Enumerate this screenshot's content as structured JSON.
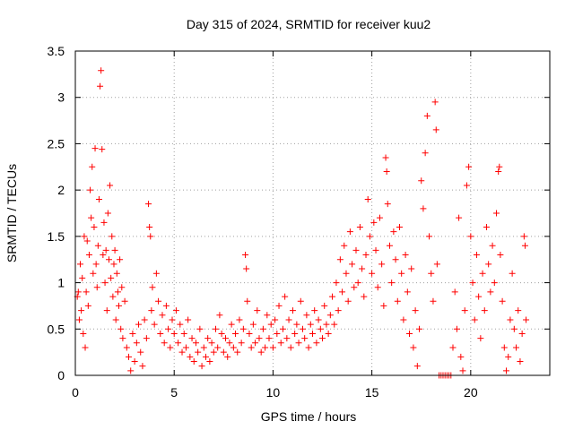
{
  "chart_data": {
    "type": "scatter",
    "title": "Day 315 of 2024, SRMTID for receiver kuu2",
    "xlabel": "GPS time / hours",
    "ylabel": "SRMTID / TECUs",
    "xlim": [
      0,
      24
    ],
    "ylim": [
      0,
      3.5
    ],
    "x_ticks": [
      0,
      5,
      10,
      15,
      20
    ],
    "x_tick_labels": [
      "0",
      "5",
      "10",
      "15",
      "20"
    ],
    "y_ticks": [
      0,
      0.5,
      1,
      1.5,
      2,
      2.5,
      3,
      3.5
    ],
    "y_tick_labels": [
      "0",
      "0.5",
      "1",
      "1.5",
      "2",
      "2.5",
      "3",
      "3.5"
    ],
    "grid": true,
    "marker": "+",
    "marker_color": "#ff0000",
    "series": [
      {
        "name": "SRMTID",
        "points": [
          [
            0.1,
            0.85
          ],
          [
            0.15,
            0.9
          ],
          [
            0.2,
            0.6
          ],
          [
            0.25,
            1.2
          ],
          [
            0.3,
            0.7
          ],
          [
            0.35,
            1.05
          ],
          [
            0.4,
            0.45
          ],
          [
            0.45,
            1.5
          ],
          [
            0.5,
            0.3
          ],
          [
            0.55,
            0.9
          ],
          [
            0.6,
            1.45
          ],
          [
            0.65,
            0.75
          ],
          [
            0.7,
            1.3
          ],
          [
            0.75,
            2.0
          ],
          [
            0.8,
            1.7
          ],
          [
            0.85,
            2.25
          ],
          [
            0.9,
            1.1
          ],
          [
            0.95,
            1.6
          ],
          [
            1.0,
            2.45
          ],
          [
            1.05,
            1.2
          ],
          [
            1.1,
            0.95
          ],
          [
            1.15,
            1.4
          ],
          [
            1.2,
            1.9
          ],
          [
            1.25,
            3.12
          ],
          [
            1.3,
            3.29
          ],
          [
            1.35,
            2.44
          ],
          [
            1.4,
            1.3
          ],
          [
            1.45,
            1.65
          ],
          [
            1.5,
            1.0
          ],
          [
            1.55,
            1.35
          ],
          [
            1.6,
            0.7
          ],
          [
            1.65,
            1.75
          ],
          [
            1.7,
            1.25
          ],
          [
            1.75,
            2.05
          ],
          [
            1.8,
            1.05
          ],
          [
            1.85,
            1.5
          ],
          [
            1.9,
            0.85
          ],
          [
            1.95,
            1.2
          ],
          [
            2.0,
            1.35
          ],
          [
            2.05,
            0.6
          ],
          [
            2.1,
            1.1
          ],
          [
            2.15,
            0.9
          ],
          [
            2.2,
            0.75
          ],
          [
            2.25,
            1.25
          ],
          [
            2.3,
            0.5
          ],
          [
            2.35,
            0.95
          ],
          [
            2.4,
            0.4
          ],
          [
            2.5,
            0.8
          ],
          [
            2.6,
            0.3
          ],
          [
            2.7,
            0.2
          ],
          [
            2.8,
            0.05
          ],
          [
            2.9,
            0.45
          ],
          [
            3.0,
            0.15
          ],
          [
            3.1,
            0.35
          ],
          [
            3.2,
            0.55
          ],
          [
            3.3,
            0.25
          ],
          [
            3.4,
            0.1
          ],
          [
            3.5,
            0.6
          ],
          [
            3.6,
            0.4
          ],
          [
            3.7,
            1.85
          ],
          [
            3.75,
            1.6
          ],
          [
            3.8,
            1.5
          ],
          [
            3.85,
            0.7
          ],
          [
            3.9,
            0.95
          ],
          [
            4.0,
            0.55
          ],
          [
            4.1,
            1.1
          ],
          [
            4.2,
            0.8
          ],
          [
            4.3,
            0.45
          ],
          [
            4.4,
            0.65
          ],
          [
            4.5,
            0.35
          ],
          [
            4.6,
            0.75
          ],
          [
            4.7,
            0.5
          ],
          [
            4.8,
            0.3
          ],
          [
            4.9,
            0.6
          ],
          [
            5.0,
            0.45
          ],
          [
            5.1,
            0.7
          ],
          [
            5.2,
            0.35
          ],
          [
            5.3,
            0.55
          ],
          [
            5.4,
            0.25
          ],
          [
            5.5,
            0.45
          ],
          [
            5.6,
            0.3
          ],
          [
            5.7,
            0.6
          ],
          [
            5.8,
            0.2
          ],
          [
            5.9,
            0.4
          ],
          [
            6.0,
            0.15
          ],
          [
            6.1,
            0.35
          ],
          [
            6.2,
            0.25
          ],
          [
            6.3,
            0.5
          ],
          [
            6.4,
            0.1
          ],
          [
            6.5,
            0.3
          ],
          [
            6.6,
            0.2
          ],
          [
            6.7,
            0.4
          ],
          [
            6.8,
            0.15
          ],
          [
            6.9,
            0.35
          ],
          [
            7.0,
            0.25
          ],
          [
            7.1,
            0.5
          ],
          [
            7.2,
            0.3
          ],
          [
            7.3,
            0.65
          ],
          [
            7.4,
            0.45
          ],
          [
            7.5,
            0.25
          ],
          [
            7.6,
            0.4
          ],
          [
            7.7,
            0.2
          ],
          [
            7.8,
            0.35
          ],
          [
            7.9,
            0.55
          ],
          [
            8.0,
            0.3
          ],
          [
            8.1,
            0.45
          ],
          [
            8.2,
            0.25
          ],
          [
            8.3,
            0.6
          ],
          [
            8.4,
            0.35
          ],
          [
            8.5,
            0.5
          ],
          [
            8.6,
            1.3
          ],
          [
            8.65,
            1.15
          ],
          [
            8.7,
            0.8
          ],
          [
            8.8,
            0.45
          ],
          [
            8.9,
            0.3
          ],
          [
            9.0,
            0.55
          ],
          [
            9.1,
            0.35
          ],
          [
            9.2,
            0.7
          ],
          [
            9.3,
            0.4
          ],
          [
            9.4,
            0.25
          ],
          [
            9.5,
            0.5
          ],
          [
            9.6,
            0.3
          ],
          [
            9.7,
            0.65
          ],
          [
            9.8,
            0.4
          ],
          [
            9.9,
            0.55
          ],
          [
            10.0,
            0.3
          ],
          [
            10.1,
            0.6
          ],
          [
            10.2,
            0.45
          ],
          [
            10.3,
            0.75
          ],
          [
            10.4,
            0.35
          ],
          [
            10.5,
            0.5
          ],
          [
            10.6,
            0.85
          ],
          [
            10.7,
            0.4
          ],
          [
            10.8,
            0.6
          ],
          [
            10.9,
            0.3
          ],
          [
            11.0,
            0.7
          ],
          [
            11.1,
            0.45
          ],
          [
            11.2,
            0.55
          ],
          [
            11.3,
            0.35
          ],
          [
            11.4,
            0.8
          ],
          [
            11.5,
            0.5
          ],
          [
            11.6,
            0.4
          ],
          [
            11.7,
            0.65
          ],
          [
            11.8,
            0.3
          ],
          [
            11.9,
            0.55
          ],
          [
            12.0,
            0.45
          ],
          [
            12.1,
            0.7
          ],
          [
            12.2,
            0.35
          ],
          [
            12.3,
            0.6
          ],
          [
            12.4,
            0.5
          ],
          [
            12.5,
            0.4
          ],
          [
            12.6,
            0.75
          ],
          [
            12.7,
            0.55
          ],
          [
            12.8,
            0.45
          ],
          [
            12.9,
            0.65
          ],
          [
            13.0,
            0.85
          ],
          [
            13.1,
            0.55
          ],
          [
            13.2,
            1.0
          ],
          [
            13.3,
            0.7
          ],
          [
            13.4,
            1.25
          ],
          [
            13.5,
            0.9
          ],
          [
            13.6,
            1.4
          ],
          [
            13.7,
            1.1
          ],
          [
            13.8,
            0.8
          ],
          [
            13.9,
            1.55
          ],
          [
            14.0,
            1.2
          ],
          [
            14.1,
            0.95
          ],
          [
            14.2,
            1.35
          ],
          [
            14.3,
            1.0
          ],
          [
            14.4,
            1.6
          ],
          [
            14.5,
            1.15
          ],
          [
            14.6,
            0.85
          ],
          [
            14.7,
            1.3
          ],
          [
            14.8,
            1.9
          ],
          [
            14.9,
            1.5
          ],
          [
            15.0,
            1.1
          ],
          [
            15.1,
            1.65
          ],
          [
            15.2,
            1.35
          ],
          [
            15.3,
            0.95
          ],
          [
            15.4,
            1.7
          ],
          [
            15.5,
            1.2
          ],
          [
            15.6,
            0.75
          ],
          [
            15.7,
            2.35
          ],
          [
            15.75,
            2.2
          ],
          [
            15.8,
            1.85
          ],
          [
            15.9,
            1.4
          ],
          [
            16.0,
            1.0
          ],
          [
            16.1,
            1.55
          ],
          [
            16.2,
            1.25
          ],
          [
            16.3,
            0.8
          ],
          [
            16.4,
            1.6
          ],
          [
            16.5,
            1.1
          ],
          [
            16.6,
            0.6
          ],
          [
            16.7,
            1.3
          ],
          [
            16.8,
            0.9
          ],
          [
            16.9,
            0.45
          ],
          [
            17.0,
            1.15
          ],
          [
            17.1,
            0.3
          ],
          [
            17.2,
            0.7
          ],
          [
            17.3,
            0.1
          ],
          [
            17.4,
            0.5
          ],
          [
            17.5,
            2.1
          ],
          [
            17.6,
            1.8
          ],
          [
            17.7,
            2.4
          ],
          [
            17.8,
            2.8
          ],
          [
            17.9,
            1.5
          ],
          [
            18.0,
            1.1
          ],
          [
            18.1,
            0.8
          ],
          [
            18.2,
            2.95
          ],
          [
            18.25,
            2.65
          ],
          [
            18.3,
            1.2
          ],
          [
            18.4,
            0.0
          ],
          [
            18.5,
            0.0
          ],
          [
            18.6,
            0.0
          ],
          [
            18.7,
            0.0
          ],
          [
            18.8,
            0.0
          ],
          [
            18.9,
            0.0
          ],
          [
            19.0,
            0.0
          ],
          [
            19.1,
            0.3
          ],
          [
            19.2,
            0.9
          ],
          [
            19.3,
            0.5
          ],
          [
            19.4,
            1.7
          ],
          [
            19.5,
            0.2
          ],
          [
            19.6,
            0.05
          ],
          [
            19.7,
            0.7
          ],
          [
            19.8,
            2.05
          ],
          [
            19.9,
            2.25
          ],
          [
            20.0,
            1.5
          ],
          [
            20.1,
            1.0
          ],
          [
            20.2,
            0.6
          ],
          [
            20.3,
            1.3
          ],
          [
            20.4,
            0.85
          ],
          [
            20.5,
            0.4
          ],
          [
            20.6,
            1.1
          ],
          [
            20.7,
            0.7
          ],
          [
            20.8,
            1.6
          ],
          [
            20.9,
            1.2
          ],
          [
            21.0,
            0.9
          ],
          [
            21.1,
            1.4
          ],
          [
            21.2,
            1.0
          ],
          [
            21.3,
            1.75
          ],
          [
            21.4,
            2.2
          ],
          [
            21.45,
            2.25
          ],
          [
            21.5,
            1.3
          ],
          [
            21.6,
            0.8
          ],
          [
            21.7,
            0.3
          ],
          [
            21.8,
            0.05
          ],
          [
            21.9,
            0.2
          ],
          [
            22.0,
            0.6
          ],
          [
            22.1,
            1.1
          ],
          [
            22.2,
            0.5
          ],
          [
            22.3,
            0.3
          ],
          [
            22.4,
            0.7
          ],
          [
            22.5,
            0.15
          ],
          [
            22.6,
            0.45
          ],
          [
            22.7,
            1.5
          ],
          [
            22.75,
            1.4
          ],
          [
            22.8,
            0.6
          ]
        ]
      }
    ]
  }
}
